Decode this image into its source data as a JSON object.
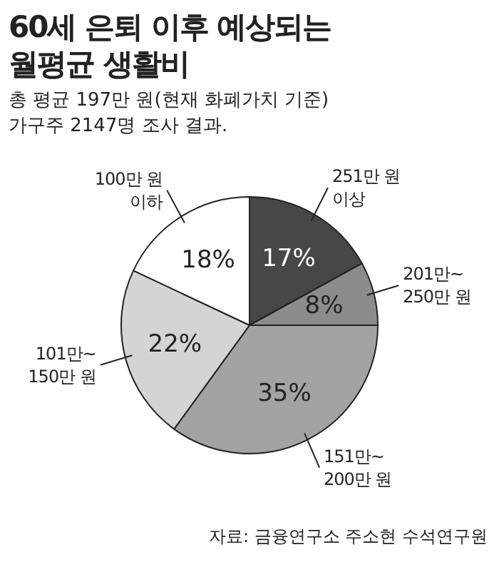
{
  "chart_data": {
    "type": "pie",
    "title": "60세 은퇴 이후 예상되는\n월평균 생활비",
    "subtitle": "총 평균 197만 원(현재 화폐가치 기준)\n가구주 2147명 조사 결과.",
    "categories": [
      "251만 원\n이상",
      "201만~\n250만 원",
      "151만~\n200만 원",
      "101만~\n150만 원",
      "100만 원\n이하"
    ],
    "values": [
      17,
      8,
      35,
      22,
      18
    ],
    "value_labels": [
      "17%",
      "8%",
      "35%",
      "22%",
      "18%"
    ],
    "colors": [
      "#474747",
      "#8c8c8c",
      "#a3a3a3",
      "#d4d4d4",
      "#ffffff"
    ],
    "annotations": [
      "자료: 금융연구소 주소현 수석연구원"
    ]
  }
}
